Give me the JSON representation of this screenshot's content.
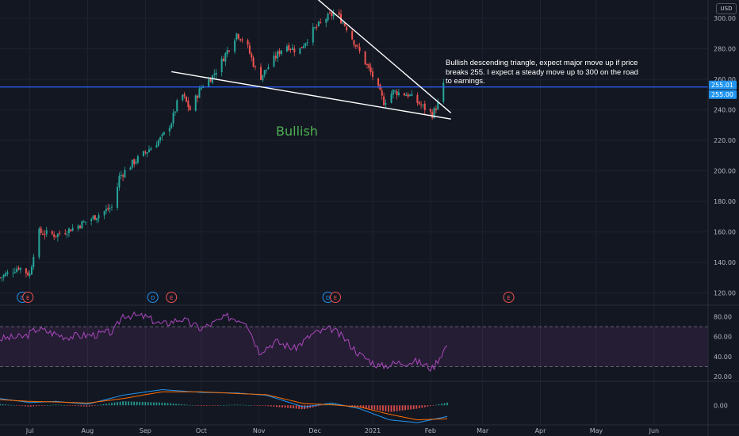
{
  "currency_label": "USD",
  "note_text": "Bullish descending triangle, expect major move up if price breaks 255. I expect a steady move up to 300 on the road to earnings.",
  "colors": {
    "background": "#131722",
    "grid": "#1f2330",
    "up": "#26a69a",
    "down": "#ef5350",
    "hline": "#2962ff",
    "tag_blue": "#2196f3",
    "rsi": "#ab47bc",
    "macd": "#2196f3",
    "signal": "#ff6d00",
    "bullish_text": "#4caf50"
  },
  "chart_data": {
    "type": "candlestick",
    "x_ticks": [
      "Jul",
      "Aug",
      "Sep",
      "Oct",
      "Nov",
      "Dec",
      "2021",
      "Feb",
      "Mar",
      "Apr",
      "May",
      "Jun"
    ],
    "x_range": [
      "2020-06-15",
      "2021-06-30"
    ],
    "price_axis": {
      "ticks": [
        120,
        140,
        160,
        180,
        200,
        220,
        240,
        260,
        280,
        300
      ],
      "range": [
        112,
        312
      ]
    },
    "price_series": [
      [
        "2020-06-15",
        130
      ],
      [
        "2020-06-25",
        137
      ],
      [
        "2020-07-01",
        132
      ],
      [
        "2020-07-05",
        160
      ],
      [
        "2020-07-15",
        158
      ],
      [
        "2020-07-25",
        163
      ],
      [
        "2020-08-05",
        170
      ],
      [
        "2020-08-15",
        177
      ],
      [
        "2020-08-18",
        196
      ],
      [
        "2020-08-25",
        205
      ],
      [
        "2020-09-01",
        212
      ],
      [
        "2020-09-10",
        222
      ],
      [
        "2020-09-15",
        232
      ],
      [
        "2020-09-20",
        252
      ],
      [
        "2020-09-25",
        240
      ],
      [
        "2020-10-01",
        255
      ],
      [
        "2020-10-07",
        262
      ],
      [
        "2020-10-12",
        272
      ],
      [
        "2020-10-20",
        290
      ],
      [
        "2020-10-25",
        284
      ],
      [
        "2020-11-01",
        260
      ],
      [
        "2020-11-07",
        270
      ],
      [
        "2020-11-15",
        283
      ],
      [
        "2020-11-22",
        278
      ],
      [
        "2020-11-30",
        292
      ],
      [
        "2020-12-07",
        300
      ],
      [
        "2020-12-12",
        304
      ],
      [
        "2020-12-18",
        294
      ],
      [
        "2020-12-24",
        280
      ],
      [
        "2021-01-01",
        262
      ],
      [
        "2021-01-07",
        245
      ],
      [
        "2021-01-12",
        252
      ],
      [
        "2021-01-20",
        250
      ],
      [
        "2021-01-27",
        243
      ],
      [
        "2021-02-02",
        237
      ],
      [
        "2021-02-05",
        244
      ],
      [
        "2021-02-08",
        256
      ]
    ],
    "horizontal_line": 255,
    "price_labels": [
      "255.01",
      "255.00"
    ],
    "trendlines": [
      {
        "from": [
          "2020-09-15",
          265
        ],
        "to": [
          "2021-02-12",
          234
        ]
      },
      {
        "from": [
          "2020-12-02",
          313
        ],
        "to": [
          "2021-02-12",
          238
        ]
      }
    ],
    "annotation": "Bullish",
    "event_markers": [
      {
        "date": "2020-06-27",
        "label": "D",
        "kind": "dividend"
      },
      {
        "date": "2020-06-30",
        "label": "E",
        "kind": "earnings"
      },
      {
        "date": "2020-09-05",
        "label": "D",
        "kind": "dividend"
      },
      {
        "date": "2020-09-15",
        "label": "E",
        "kind": "earnings"
      },
      {
        "date": "2020-12-08",
        "label": "D",
        "kind": "dividend"
      },
      {
        "date": "2020-12-12",
        "label": "E",
        "kind": "earnings"
      },
      {
        "date": "2021-03-15",
        "label": "E",
        "kind": "earnings"
      }
    ],
    "rsi": {
      "ticks": [
        20,
        40,
        60,
        80
      ],
      "range": [
        16,
        90
      ],
      "upper": 70,
      "lower": 30,
      "values": [
        [
          "2020-06-15",
          58
        ],
        [
          "2020-06-28",
          60
        ],
        [
          "2020-07-05",
          68
        ],
        [
          "2020-07-20",
          60
        ],
        [
          "2020-08-05",
          62
        ],
        [
          "2020-08-15",
          65
        ],
        [
          "2020-08-20",
          82
        ],
        [
          "2020-09-01",
          80
        ],
        [
          "2020-09-10",
          72
        ],
        [
          "2020-09-20",
          78
        ],
        [
          "2020-10-01",
          68
        ],
        [
          "2020-10-15",
          80
        ],
        [
          "2020-10-25",
          76
        ],
        [
          "2020-11-01",
          45
        ],
        [
          "2020-11-10",
          55
        ],
        [
          "2020-11-20",
          48
        ],
        [
          "2020-11-30",
          63
        ],
        [
          "2020-12-10",
          68
        ],
        [
          "2020-12-17",
          58
        ],
        [
          "2020-12-25",
          42
        ],
        [
          "2021-01-05",
          30
        ],
        [
          "2021-01-15",
          34
        ],
        [
          "2021-01-25",
          35
        ],
        [
          "2021-02-02",
          28
        ],
        [
          "2021-02-10",
          52
        ]
      ]
    },
    "macd": {
      "ticks": [
        0
      ],
      "range": [
        -3.5,
        4
      ],
      "macd_line": [
        [
          "2020-06-15",
          1.2
        ],
        [
          "2020-07-01",
          0.5
        ],
        [
          "2020-07-15",
          0.7
        ],
        [
          "2020-08-01",
          0.2
        ],
        [
          "2020-08-20",
          1.8
        ],
        [
          "2020-09-10",
          2.8
        ],
        [
          "2020-10-01",
          2.3
        ],
        [
          "2020-10-20",
          2.2
        ],
        [
          "2020-11-05",
          1.8
        ],
        [
          "2020-11-25",
          -0.3
        ],
        [
          "2020-12-10",
          0.4
        ],
        [
          "2020-12-25",
          -0.6
        ],
        [
          "2021-01-10",
          -2.6
        ],
        [
          "2021-01-25",
          -3.1
        ],
        [
          "2021-02-10",
          -2.0
        ]
      ],
      "signal_line": [
        [
          "2020-06-15",
          1.0
        ],
        [
          "2020-07-01",
          0.7
        ],
        [
          "2020-07-15",
          0.6
        ],
        [
          "2020-08-01",
          0.4
        ],
        [
          "2020-08-20",
          1.2
        ],
        [
          "2020-09-10",
          2.4
        ],
        [
          "2020-10-01",
          2.4
        ],
        [
          "2020-10-20",
          2.1
        ],
        [
          "2020-11-05",
          1.9
        ],
        [
          "2020-11-25",
          0.3
        ],
        [
          "2020-12-10",
          0.1
        ],
        [
          "2020-12-25",
          -0.3
        ],
        [
          "2021-01-10",
          -1.6
        ],
        [
          "2021-01-25",
          -2.6
        ],
        [
          "2021-02-10",
          -2.4
        ]
      ],
      "histogram_note": "difference of macd and signal lines"
    }
  }
}
